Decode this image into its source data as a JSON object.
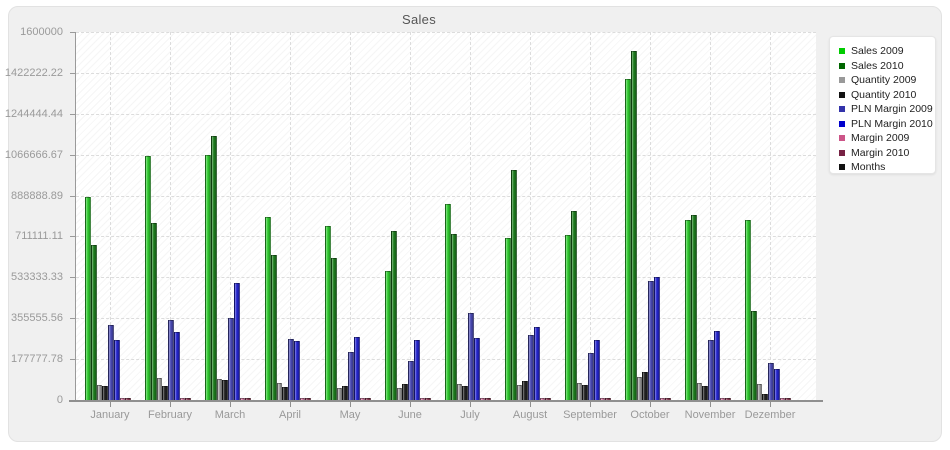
{
  "panel": {
    "background": "#f0f0f0",
    "page_background": "#ffffff"
  },
  "chart_data": {
    "type": "bar",
    "title": "Sales",
    "xlabel": "",
    "ylabel": "",
    "ylim": [
      0,
      1600000
    ],
    "grid": "dashed horizontal and vertical",
    "legend_position": "right",
    "yticks": [
      "1600000",
      "1422222.22",
      "1244444.44",
      "1066666.67",
      "888888.89",
      "711111.11",
      "533333.33",
      "355555.56",
      "177777.78",
      "0"
    ],
    "categories": [
      "January",
      "February",
      "March",
      "April",
      "May",
      "June",
      "July",
      "August",
      "September",
      "October",
      "November",
      "Dezember"
    ],
    "series": [
      {
        "name": "Sales 2009",
        "color": "#2ecc2e",
        "legend_color": "#00cc00",
        "values": [
          885000,
          1062000,
          1066667,
          795000,
          757000,
          563000,
          853000,
          705000,
          719000,
          1396000,
          784000,
          784000
        ]
      },
      {
        "name": "Sales 2010",
        "color": "#1e7e1e",
        "legend_color": "#006600",
        "values": [
          672000,
          770000,
          1146000,
          630000,
          618000,
          734000,
          722000,
          1002000,
          823000,
          1519000,
          806000,
          388000
        ]
      },
      {
        "name": "Quantity 2009",
        "color": "#a5a5a5",
        "legend_color": "#999999",
        "values": [
          67000,
          95000,
          92000,
          72000,
          53000,
          51000,
          68000,
          65000,
          72000,
          101000,
          72000,
          69000
        ]
      },
      {
        "name": "Quantity 2010",
        "color": "#222222",
        "legend_color": "#111111",
        "values": [
          59000,
          62000,
          87000,
          58000,
          59000,
          68000,
          62000,
          81000,
          64000,
          120000,
          62000,
          25000
        ]
      },
      {
        "name": "PLN Margin 2009",
        "color": "#4a4ab4",
        "legend_color": "#3333aa",
        "values": [
          327000,
          349000,
          356000,
          265000,
          211000,
          170000,
          378000,
          284000,
          205000,
          519000,
          260000,
          160000
        ]
      },
      {
        "name": "PLN Margin 2010",
        "color": "#2525cf",
        "legend_color": "#0000cc",
        "values": [
          260000,
          298000,
          509000,
          258000,
          274000,
          263000,
          271000,
          317000,
          261000,
          533000,
          302000,
          137000
        ]
      },
      {
        "name": "Margin 2009",
        "color": "#e087ae",
        "legend_color": "#cc5588",
        "values": [
          7000,
          7000,
          7000,
          7000,
          7000,
          7000,
          7000,
          7000,
          7000,
          7000,
          7000,
          7000
        ]
      },
      {
        "name": "Margin 2010",
        "color": "#8e3a55",
        "legend_color": "#772244",
        "values": [
          7000,
          7000,
          7000,
          7000,
          7000,
          7000,
          7000,
          7000,
          7000,
          7000,
          7000,
          7000
        ]
      },
      {
        "name": "Months",
        "color": "#111111",
        "legend_color": "#111111",
        "values": [
          0,
          0,
          0,
          0,
          0,
          0,
          0,
          0,
          0,
          0,
          0,
          0
        ]
      }
    ]
  }
}
